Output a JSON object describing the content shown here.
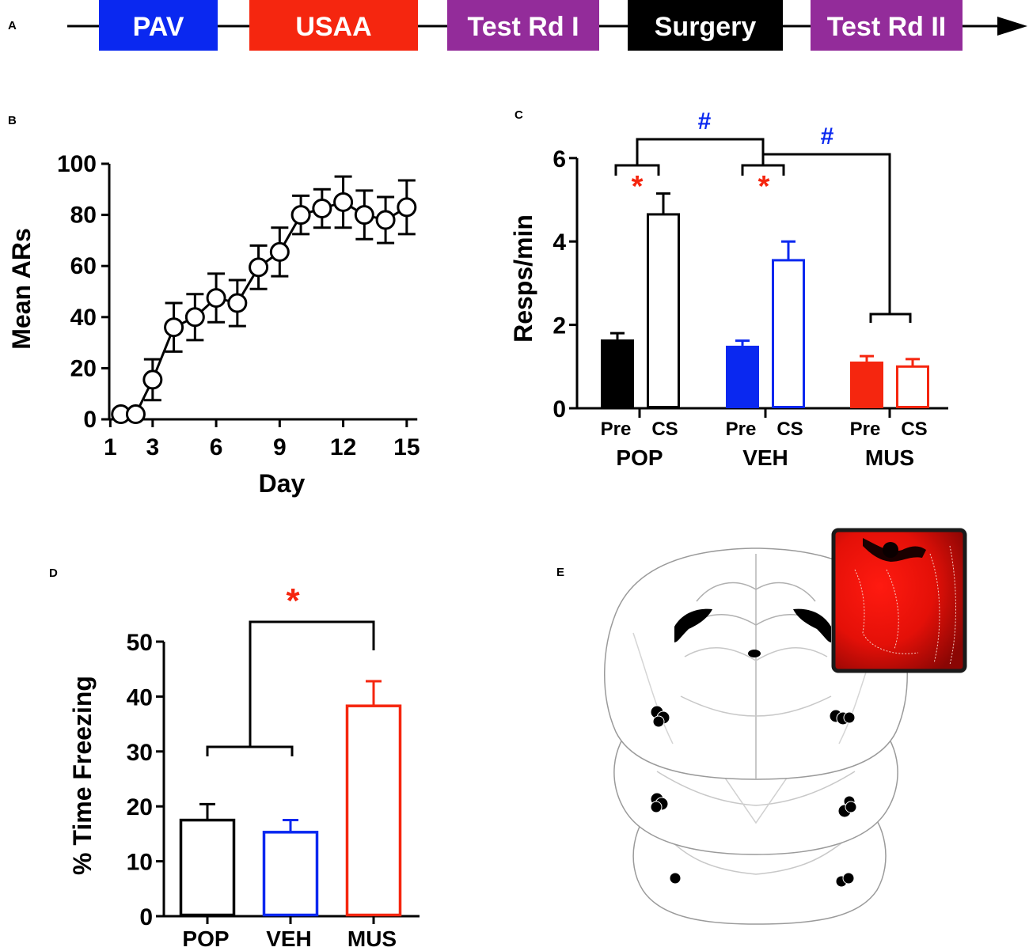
{
  "panels": {
    "a": "A",
    "b": "B",
    "c": "C",
    "d": "D",
    "e": "E"
  },
  "colors": {
    "pop": "#000000",
    "veh": "#0a28f0",
    "mus": "#f5260f",
    "stage_pav": "#0a28f0",
    "stage_usaa": "#f5260f",
    "stage_test": "#932c9a",
    "stage_surgery": "#000000",
    "sig_red": "#f5260f",
    "sig_blue": "#0a28f0"
  },
  "timeline": {
    "stages": [
      {
        "label": "PAV",
        "color": "#0a28f0"
      },
      {
        "label": "USAA",
        "color": "#f5260f"
      },
      {
        "label": "Test Rd I",
        "color": "#932c9a"
      },
      {
        "label": "Surgery",
        "color": "#000000"
      },
      {
        "label": "Test Rd II",
        "color": "#932c9a"
      }
    ]
  },
  "chart_data": [
    {
      "panel": "B",
      "type": "line",
      "xlabel": "Day",
      "ylabel": "Mean ARs",
      "xlim": [
        1,
        15.5
      ],
      "ylim": [
        0,
        100
      ],
      "xticks": [
        1,
        3,
        6,
        9,
        12,
        15
      ],
      "yticks": [
        0,
        20,
        40,
        60,
        80,
        100
      ],
      "series": [
        {
          "name": "Mean ARs",
          "x": [
            1.5,
            2.2,
            3,
            4,
            5,
            6,
            7,
            8,
            9,
            10,
            11,
            12,
            13,
            14,
            15
          ],
          "values": [
            2,
            2,
            15.5,
            36,
            40,
            47.5,
            45.5,
            59.5,
            65.5,
            80,
            82.5,
            85,
            80,
            78,
            83
          ],
          "error": [
            0,
            0,
            8,
            9.5,
            9,
            9.5,
            9,
            8.5,
            9.5,
            7.5,
            7.5,
            10,
            9.5,
            9,
            10.5
          ]
        }
      ]
    },
    {
      "panel": "C",
      "type": "bar",
      "ylabel": "Resps/min",
      "ylim": [
        0,
        6
      ],
      "yticks": [
        0,
        2,
        4,
        6
      ],
      "groups": [
        "POP",
        "VEH",
        "MUS"
      ],
      "subcategories": [
        "Pre",
        "CS"
      ],
      "series": [
        {
          "name": "Pre",
          "values": [
            1.65,
            1.5,
            1.12
          ],
          "error": [
            0.15,
            0.12,
            0.13
          ]
        },
        {
          "name": "CS",
          "values": [
            4.65,
            3.55,
            1.0
          ],
          "error": [
            0.5,
            0.45,
            0.18
          ]
        }
      ],
      "annotations": [
        "*",
        "*",
        "#",
        "#"
      ]
    },
    {
      "panel": "D",
      "type": "bar",
      "ylabel": "% Time Freezing",
      "ylim": [
        0,
        50
      ],
      "yticks": [
        0,
        10,
        20,
        30,
        40,
        50
      ],
      "categories": [
        "POP",
        "VEH",
        "MUS"
      ],
      "values": [
        17.5,
        15.3,
        38.3
      ],
      "error": [
        2.9,
        2.2,
        4.5
      ],
      "annotations": [
        "*"
      ]
    }
  ]
}
